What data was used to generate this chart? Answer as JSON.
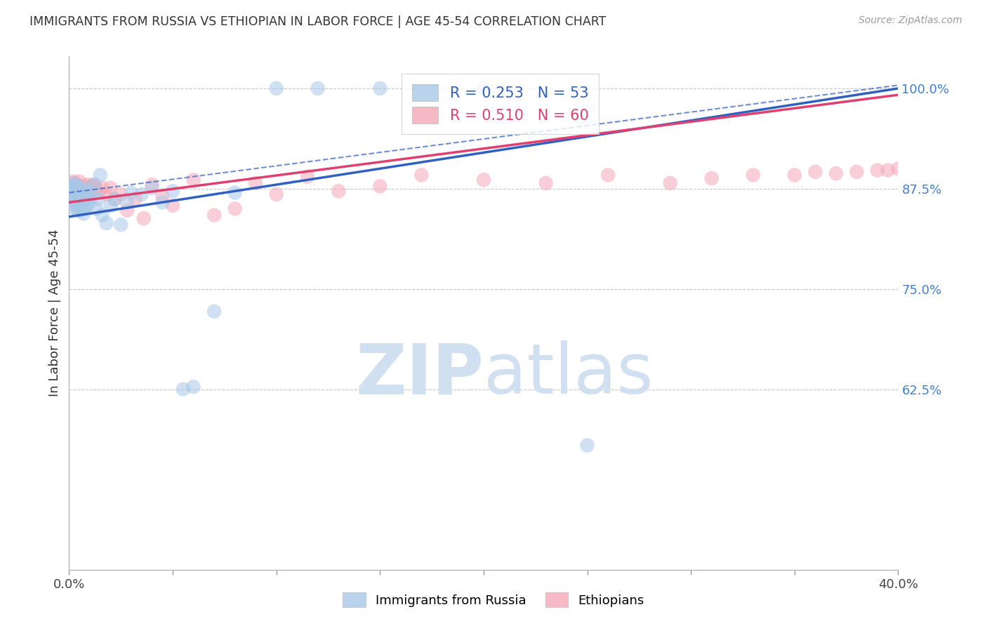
{
  "title": "IMMIGRANTS FROM RUSSIA VS ETHIOPIAN IN LABOR FORCE | AGE 45-54 CORRELATION CHART",
  "source": "Source: ZipAtlas.com",
  "ylabel": "In Labor Force | Age 45-54",
  "legend_label_russia": "Immigrants from Russia",
  "legend_label_ethiopian": "Ethiopians",
  "R_russia": 0.253,
  "N_russia": 53,
  "R_ethiopian": 0.51,
  "N_ethiopian": 60,
  "xlim": [
    0.0,
    0.4
  ],
  "ylim": [
    0.4,
    1.04
  ],
  "blue_color": "#a8c8e8",
  "pink_color": "#f4a8b8",
  "blue_line_color": "#3060c0",
  "pink_line_color": "#e04070",
  "grid_color": "#c8c8c8",
  "watermark_color": "#d0e0f0",
  "russia_x": [
    0.001,
    0.001,
    0.001,
    0.002,
    0.002,
    0.002,
    0.002,
    0.002,
    0.003,
    0.003,
    0.003,
    0.003,
    0.004,
    0.004,
    0.004,
    0.004,
    0.005,
    0.005,
    0.005,
    0.006,
    0.006,
    0.007,
    0.007,
    0.008,
    0.008,
    0.008,
    0.009,
    0.01,
    0.011,
    0.012,
    0.013,
    0.014,
    0.015,
    0.016,
    0.018,
    0.02,
    0.022,
    0.025,
    0.028,
    0.03,
    0.035,
    0.04,
    0.045,
    0.05,
    0.055,
    0.06,
    0.07,
    0.08,
    0.1,
    0.12,
    0.15,
    0.2,
    0.25
  ],
  "russia_y": [
    0.86,
    0.87,
    0.878,
    0.856,
    0.864,
    0.872,
    0.878,
    0.882,
    0.85,
    0.858,
    0.866,
    0.878,
    0.848,
    0.858,
    0.868,
    0.878,
    0.848,
    0.856,
    0.876,
    0.852,
    0.864,
    0.844,
    0.87,
    0.852,
    0.862,
    0.874,
    0.855,
    0.862,
    0.87,
    0.88,
    0.85,
    0.862,
    0.892,
    0.842,
    0.832,
    0.854,
    0.862,
    0.83,
    0.858,
    0.87,
    0.868,
    0.876,
    0.858,
    0.872,
    0.625,
    0.628,
    0.722,
    0.87,
    1.0,
    1.0,
    1.0,
    1.0,
    0.555
  ],
  "ethiopian_x": [
    0.001,
    0.001,
    0.002,
    0.002,
    0.002,
    0.003,
    0.003,
    0.003,
    0.004,
    0.004,
    0.004,
    0.005,
    0.005,
    0.005,
    0.006,
    0.006,
    0.007,
    0.007,
    0.008,
    0.008,
    0.009,
    0.009,
    0.01,
    0.011,
    0.012,
    0.013,
    0.014,
    0.016,
    0.018,
    0.02,
    0.022,
    0.025,
    0.028,
    0.032,
    0.036,
    0.04,
    0.045,
    0.05,
    0.06,
    0.07,
    0.08,
    0.09,
    0.1,
    0.115,
    0.13,
    0.15,
    0.17,
    0.2,
    0.23,
    0.26,
    0.29,
    0.31,
    0.33,
    0.35,
    0.36,
    0.37,
    0.38,
    0.39,
    0.395,
    0.4
  ],
  "ethiopian_y": [
    0.872,
    0.88,
    0.868,
    0.876,
    0.884,
    0.862,
    0.872,
    0.882,
    0.856,
    0.868,
    0.88,
    0.858,
    0.872,
    0.884,
    0.856,
    0.876,
    0.862,
    0.878,
    0.862,
    0.878,
    0.866,
    0.88,
    0.87,
    0.878,
    0.88,
    0.876,
    0.87,
    0.876,
    0.868,
    0.876,
    0.862,
    0.868,
    0.848,
    0.862,
    0.838,
    0.88,
    0.866,
    0.854,
    0.886,
    0.842,
    0.85,
    0.882,
    0.868,
    0.89,
    0.872,
    0.878,
    0.892,
    0.886,
    0.882,
    0.892,
    0.882,
    0.888,
    0.892,
    0.892,
    0.896,
    0.894,
    0.896,
    0.898,
    0.898,
    0.9
  ],
  "blue_trendline": [
    0.84,
    1.0
  ],
  "pink_trendline": [
    0.858,
    0.992
  ],
  "dashed_line": [
    0.87,
    1.004
  ]
}
